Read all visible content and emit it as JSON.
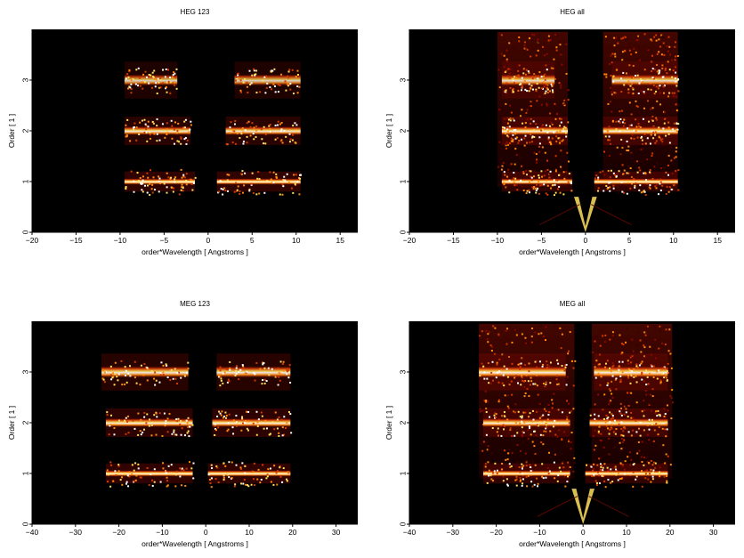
{
  "chart_data": [
    {
      "type": "heatmap",
      "title": "HEG 123",
      "xlabel": "order*Wavelength [ Angstroms ]",
      "ylabel": "Order [ 1 ]",
      "xlim": [
        -20,
        17
      ],
      "ylim": [
        0,
        4
      ],
      "xticks": [
        -20,
        -15,
        -10,
        -5,
        0,
        5,
        10,
        15
      ],
      "yticks": [
        0,
        1,
        2,
        3
      ],
      "colormap": [
        "#000000",
        "#3a0000",
        "#8b0a00",
        "#d23a00",
        "#ff8a10",
        "#ffe060",
        "#ffffff"
      ],
      "bands": [
        {
          "order": 1,
          "segments": [
            [
              -9.5,
              -1.5
            ],
            [
              1.0,
              10.5
            ]
          ],
          "intensity": 1.0
        },
        {
          "order": 2,
          "segments": [
            [
              -9.5,
              -2.0
            ],
            [
              2.0,
              10.5
            ]
          ],
          "intensity": 0.85
        },
        {
          "order": 3,
          "segments": [
            [
              -9.5,
              -3.5
            ],
            [
              3.0,
              10.5
            ]
          ],
          "intensity": 0.6
        }
      ]
    },
    {
      "type": "heatmap",
      "title": "HEG all",
      "xlabel": "order*Wavelength [ Angstroms ]",
      "ylabel": "Order [ 1 ]",
      "xlim": [
        -20,
        17
      ],
      "ylim": [
        0,
        4
      ],
      "xticks": [
        -20,
        -15,
        -10,
        -5,
        0,
        5,
        10,
        15
      ],
      "yticks": [
        0,
        1,
        2,
        3
      ],
      "colormap": [
        "#000000",
        "#3a0000",
        "#8b0a00",
        "#d23a00",
        "#ff8a10",
        "#ffe060",
        "#ffffff"
      ],
      "bands": [
        {
          "order": 1,
          "segments": [
            [
              -9.5,
              -1.5
            ],
            [
              1.0,
              10.5
            ]
          ],
          "intensity": 1.0
        },
        {
          "order": 2,
          "segments": [
            [
              -9.5,
              -2.0
            ],
            [
              2.0,
              10.5
            ]
          ],
          "intensity": 0.9
        },
        {
          "order": 3,
          "segments": [
            [
              -9.5,
              -3.5
            ],
            [
              3.0,
              10.5
            ]
          ],
          "intensity": 0.7
        }
      ],
      "background_columns": [
        [
          -10,
          -2
        ],
        [
          2,
          10.5
        ]
      ],
      "zero_order_v": true
    },
    {
      "type": "heatmap",
      "title": "MEG 123",
      "xlabel": "order*Wavelength [ Angstroms ]",
      "ylabel": "Order [ 1 ]",
      "xlim": [
        -40,
        35
      ],
      "ylim": [
        0,
        4
      ],
      "xticks": [
        -40,
        -30,
        -20,
        -10,
        0,
        10,
        20,
        30
      ],
      "yticks": [
        0,
        1,
        2,
        3
      ],
      "colormap": [
        "#000000",
        "#3a0000",
        "#8b0a00",
        "#d23a00",
        "#ff8a10",
        "#ffe060",
        "#ffffff"
      ],
      "bands": [
        {
          "order": 1,
          "segments": [
            [
              -23.0,
              -3.0
            ],
            [
              0.5,
              19.5
            ]
          ],
          "intensity": 1.0
        },
        {
          "order": 2,
          "segments": [
            [
              -23.0,
              -3.0
            ],
            [
              1.5,
              19.5
            ]
          ],
          "intensity": 0.9
        },
        {
          "order": 3,
          "segments": [
            [
              -24.0,
              -4.0
            ],
            [
              2.5,
              19.5
            ]
          ],
          "intensity": 0.8
        }
      ]
    },
    {
      "type": "heatmap",
      "title": "MEG all",
      "xlabel": "order*Wavelength [ Angstroms ]",
      "ylabel": "Order [ 1 ]",
      "xlim": [
        -40,
        35
      ],
      "ylim": [
        0,
        4
      ],
      "xticks": [
        -40,
        -30,
        -20,
        -10,
        0,
        10,
        20,
        30
      ],
      "yticks": [
        0,
        1,
        2,
        3
      ],
      "colormap": [
        "#000000",
        "#3a0000",
        "#8b0a00",
        "#d23a00",
        "#ff8a10",
        "#ffe060",
        "#ffffff"
      ],
      "bands": [
        {
          "order": 1,
          "segments": [
            [
              -23.0,
              -3.0
            ],
            [
              0.5,
              19.5
            ]
          ],
          "intensity": 1.0
        },
        {
          "order": 2,
          "segments": [
            [
              -23.0,
              -3.0
            ],
            [
              1.5,
              19.5
            ]
          ],
          "intensity": 0.9
        },
        {
          "order": 3,
          "segments": [
            [
              -24.0,
              -4.0
            ],
            [
              2.5,
              19.5
            ]
          ],
          "intensity": 0.85
        }
      ],
      "background_columns": [
        [
          -24,
          -2
        ],
        [
          2,
          20.5
        ]
      ],
      "zero_order_v": true
    }
  ]
}
